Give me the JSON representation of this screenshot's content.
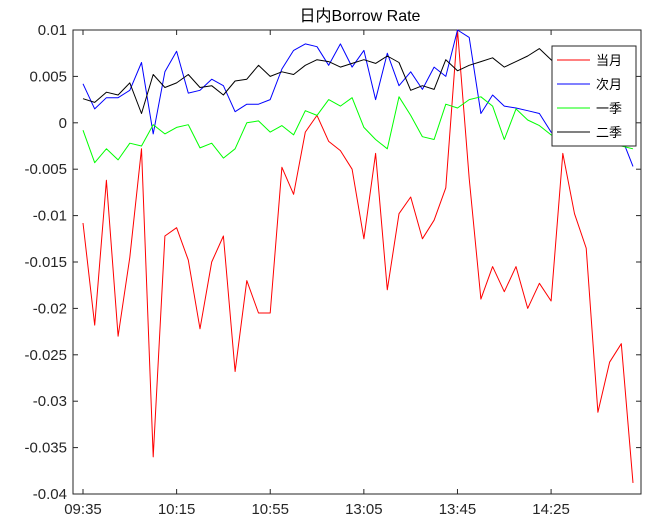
{
  "chart_data": {
    "type": "line",
    "title": "日内Borrow Rate",
    "xlabel": "",
    "ylabel": "",
    "ylim": [
      -0.04,
      0.01
    ],
    "y_ticks": [
      0.01,
      0.005,
      0,
      -0.005,
      -0.01,
      -0.015,
      -0.02,
      -0.025,
      -0.03,
      -0.035,
      -0.04
    ],
    "y_tick_labels": [
      "0.01",
      "0.005",
      "0",
      "-0.005",
      "-0.01",
      "-0.015",
      "-0.02",
      "-0.025",
      "-0.03",
      "-0.035",
      "-0.04"
    ],
    "x_tick_labels": [
      "09:35",
      "10:15",
      "10:55",
      "13:05",
      "13:45",
      "14:25"
    ],
    "x_tick_index": [
      0,
      8,
      16,
      24,
      32,
      40
    ],
    "n_points": 48,
    "grid": false,
    "legend": "top-right",
    "series": [
      {
        "name": "当月",
        "color": "#ff0000",
        "values": [
          -0.0108,
          -0.0218,
          -0.0062,
          -0.023,
          -0.0145,
          -0.0028,
          -0.036,
          -0.0122,
          -0.0113,
          -0.0148,
          -0.0222,
          -0.015,
          -0.0122,
          -0.0268,
          -0.017,
          -0.0205,
          -0.0205,
          -0.0048,
          -0.0077,
          -0.001,
          0.0008,
          -0.002,
          -0.003,
          -0.005,
          -0.0125,
          -0.0033,
          -0.018,
          -0.0098,
          -0.008,
          -0.0125,
          -0.0105,
          -0.007,
          0.01,
          -0.006,
          -0.019,
          -0.0155,
          -0.0182,
          -0.0155,
          -0.02,
          -0.0173,
          -0.0192,
          -0.0033,
          -0.0098,
          -0.0135,
          -0.0312,
          -0.0258,
          -0.0238,
          -0.0388
        ]
      },
      {
        "name": "次月",
        "color": "#0000ff",
        "values": [
          0.0042,
          0.0015,
          0.0027,
          0.0027,
          0.0035,
          0.0065,
          -0.0012,
          0.0055,
          0.0077,
          0.0032,
          0.0035,
          0.0047,
          0.004,
          0.0012,
          0.002,
          0.002,
          0.0025,
          0.0058,
          0.0078,
          0.0085,
          0.0082,
          0.0062,
          0.0085,
          0.006,
          0.0078,
          0.0025,
          0.0075,
          0.004,
          0.0055,
          0.0036,
          0.006,
          0.005,
          0.01,
          0.0092,
          0.001,
          0.003,
          0.0018,
          0.0016,
          0.0013,
          0.001,
          -0.001,
          -0.0015,
          -0.001,
          -0.001,
          -0.0025,
          -0.0015,
          -0.0015,
          -0.0047
        ]
      },
      {
        "name": "一季",
        "color": "#00ff00",
        "values": [
          -0.0008,
          -0.0043,
          -0.0028,
          -0.004,
          -0.0022,
          -0.0025,
          -0.0002,
          -0.0012,
          -0.0005,
          -0.0002,
          -0.0027,
          -0.0022,
          -0.0038,
          -0.0028,
          0.0,
          0.0002,
          -0.001,
          -0.0003,
          -0.0013,
          0.0013,
          0.0008,
          0.0025,
          0.0018,
          0.0027,
          -0.0005,
          -0.0018,
          -0.0028,
          0.0028,
          0.0008,
          -0.0015,
          -0.0018,
          0.002,
          0.0016,
          0.0025,
          0.0028,
          0.0018,
          -0.0018,
          0.0015,
          0.0003,
          -0.0003,
          -0.0013,
          -0.0018,
          -0.002,
          -0.0022,
          -0.0018,
          -0.0015,
          -0.0025,
          -0.0028
        ]
      },
      {
        "name": "二季",
        "color": "#000000",
        "values": [
          0.0026,
          0.0022,
          0.0033,
          0.003,
          0.0043,
          0.001,
          0.0052,
          0.0038,
          0.0043,
          0.0052,
          0.0038,
          0.004,
          0.003,
          0.0045,
          0.0047,
          0.0062,
          0.005,
          0.0055,
          0.0052,
          0.0062,
          0.0068,
          0.0066,
          0.006,
          0.0064,
          0.0068,
          0.0064,
          0.0072,
          0.0065,
          0.0035,
          0.004,
          0.0036,
          0.0068,
          0.0056,
          0.0062,
          0.0066,
          0.007,
          0.006,
          0.0066,
          0.0072,
          0.008,
          0.0068,
          0.0052,
          0.0045,
          0.004,
          0.0035,
          0.003,
          0.002,
          0.0015
        ]
      }
    ]
  }
}
